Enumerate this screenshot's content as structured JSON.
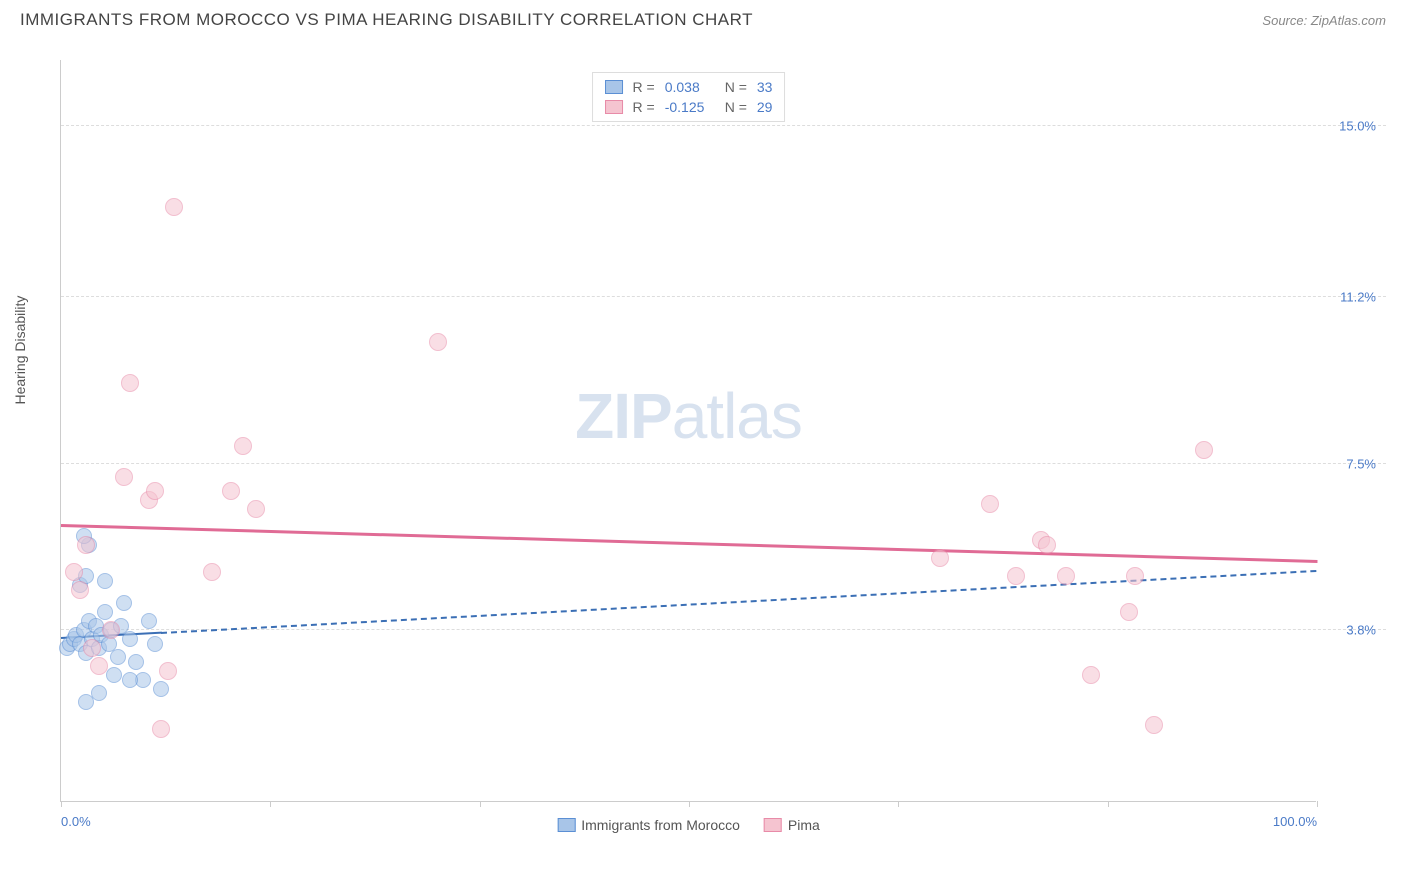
{
  "title": "IMMIGRANTS FROM MOROCCO VS PIMA HEARING DISABILITY CORRELATION CHART",
  "source_label": "Source:",
  "source_name": "ZipAtlas.com",
  "ylabel": "Hearing Disability",
  "watermark_bold": "ZIP",
  "watermark_rest": "atlas",
  "chart": {
    "type": "scatter",
    "background_color": "#ffffff",
    "grid_color": "#dddddd",
    "axis_color": "#cccccc",
    "xlim": [
      0,
      100
    ],
    "ylim": [
      0,
      16.5
    ],
    "xtick_positions": [
      0,
      16.67,
      33.33,
      50,
      66.67,
      83.33,
      100
    ],
    "xtick_labels": {
      "0": "0.0%",
      "100": "100.0%"
    },
    "ytick_positions": [
      3.8,
      7.5,
      11.2,
      15.0
    ],
    "ytick_labels": [
      "3.8%",
      "7.5%",
      "11.2%",
      "15.0%"
    ],
    "tick_label_color": "#4a7ac7",
    "tick_fontsize": 13,
    "series": [
      {
        "name": "Immigrants from Morocco",
        "key": "morocco",
        "fill_color": "#a8c5e8",
        "stroke_color": "#5b8fd4",
        "fill_opacity": 0.55,
        "marker_radius": 8,
        "R": "0.038",
        "N": "33",
        "trend": {
          "x1": 0,
          "y1": 3.6,
          "x2": 100,
          "y2": 5.1,
          "solid_until_x": 8,
          "color": "#3b6fb5",
          "width": 2,
          "dash": "5,5"
        },
        "points": [
          {
            "x": 0.5,
            "y": 3.4
          },
          {
            "x": 0.7,
            "y": 3.5
          },
          {
            "x": 1.0,
            "y": 3.6
          },
          {
            "x": 1.2,
            "y": 3.7
          },
          {
            "x": 1.5,
            "y": 3.5
          },
          {
            "x": 1.8,
            "y": 3.8
          },
          {
            "x": 2.0,
            "y": 3.3
          },
          {
            "x": 2.2,
            "y": 4.0
          },
          {
            "x": 2.5,
            "y": 3.6
          },
          {
            "x": 2.8,
            "y": 3.9
          },
          {
            "x": 3.0,
            "y": 3.4
          },
          {
            "x": 3.2,
            "y": 3.7
          },
          {
            "x": 3.5,
            "y": 4.2
          },
          {
            "x": 3.8,
            "y": 3.5
          },
          {
            "x": 4.0,
            "y": 3.8
          },
          {
            "x": 4.2,
            "y": 2.8
          },
          {
            "x": 4.5,
            "y": 3.2
          },
          {
            "x": 4.8,
            "y": 3.9
          },
          {
            "x": 5.0,
            "y": 4.4
          },
          {
            "x": 5.5,
            "y": 3.6
          },
          {
            "x": 6.0,
            "y": 3.1
          },
          {
            "x": 6.5,
            "y": 2.7
          },
          {
            "x": 7.0,
            "y": 4.0
          },
          {
            "x": 7.5,
            "y": 3.5
          },
          {
            "x": 8.0,
            "y": 2.5
          },
          {
            "x": 2.0,
            "y": 2.2
          },
          {
            "x": 3.0,
            "y": 2.4
          },
          {
            "x": 1.5,
            "y": 4.8
          },
          {
            "x": 2.0,
            "y": 5.0
          },
          {
            "x": 3.5,
            "y": 4.9
          },
          {
            "x": 2.2,
            "y": 5.7
          },
          {
            "x": 1.8,
            "y": 5.9
          },
          {
            "x": 5.5,
            "y": 2.7
          }
        ]
      },
      {
        "name": "Pima",
        "key": "pima",
        "fill_color": "#f5c4d0",
        "stroke_color": "#e88ba8",
        "fill_opacity": 0.55,
        "marker_radius": 9,
        "R": "-0.125",
        "N": "29",
        "trend": {
          "x1": 0,
          "y1": 6.1,
          "x2": 100,
          "y2": 5.3,
          "solid_until_x": 100,
          "color": "#e06b95",
          "width": 3,
          "dash": null
        },
        "points": [
          {
            "x": 1.0,
            "y": 5.1
          },
          {
            "x": 1.5,
            "y": 4.7
          },
          {
            "x": 2.0,
            "y": 5.7
          },
          {
            "x": 2.5,
            "y": 3.4
          },
          {
            "x": 3.0,
            "y": 3.0
          },
          {
            "x": 4.0,
            "y": 3.8
          },
          {
            "x": 5.0,
            "y": 7.2
          },
          {
            "x": 5.5,
            "y": 9.3
          },
          {
            "x": 8.0,
            "y": 1.6
          },
          {
            "x": 8.5,
            "y": 2.9
          },
          {
            "x": 7.0,
            "y": 6.7
          },
          {
            "x": 7.5,
            "y": 6.9
          },
          {
            "x": 9.0,
            "y": 13.2
          },
          {
            "x": 12.0,
            "y": 5.1
          },
          {
            "x": 13.5,
            "y": 6.9
          },
          {
            "x": 14.5,
            "y": 7.9
          },
          {
            "x": 15.5,
            "y": 6.5
          },
          {
            "x": 30.0,
            "y": 10.2
          },
          {
            "x": 70.0,
            "y": 5.4
          },
          {
            "x": 74.0,
            "y": 6.6
          },
          {
            "x": 76.0,
            "y": 5.0
          },
          {
            "x": 78.0,
            "y": 5.8
          },
          {
            "x": 78.5,
            "y": 5.7
          },
          {
            "x": 80.0,
            "y": 5.0
          },
          {
            "x": 82.0,
            "y": 2.8
          },
          {
            "x": 85.0,
            "y": 4.2
          },
          {
            "x": 85.5,
            "y": 5.0
          },
          {
            "x": 87.0,
            "y": 1.7
          },
          {
            "x": 91.0,
            "y": 7.8
          }
        ]
      }
    ],
    "legend_top": {
      "R_label": "R",
      "N_label": "N",
      "eq": "="
    }
  }
}
